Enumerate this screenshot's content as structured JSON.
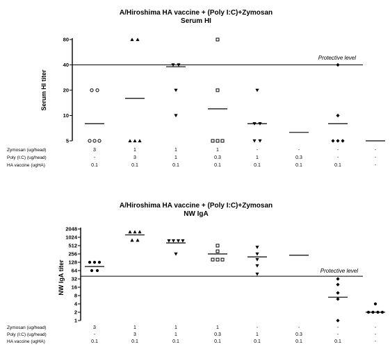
{
  "chart_data": [
    {
      "type": "scatter",
      "title": "A/Hiroshima HA vaccine + (Poly I:C)+Zymosan",
      "subtitle": "Serum HI",
      "ylabel": "Serum HI titer",
      "ylim": [
        5,
        80
      ],
      "yticks": [
        "5",
        "10",
        "20",
        "40",
        "80"
      ],
      "protective_level": {
        "label": "Protective level",
        "value": 40
      },
      "groups": [
        {
          "points": [
            20,
            20,
            5,
            5,
            5
          ],
          "marker": "circle-open",
          "mean": 8
        },
        {
          "points": [
            80,
            80,
            5,
            5,
            5
          ],
          "marker": "triangle-up",
          "mean": 16
        },
        {
          "points": [
            40,
            40,
            20,
            10
          ],
          "marker": "triangle-down",
          "mean": 38
        },
        {
          "points": [
            80,
            20,
            5,
            5,
            5
          ],
          "marker": "square-open",
          "mean": 12
        },
        {
          "points": [
            20,
            8,
            8,
            5,
            5
          ],
          "marker": "triangle-down",
          "mean": 8
        },
        {
          "points": [
            5,
            5,
            5,
            5,
            5
          ],
          "marker": "none",
          "mean": 6.3
        },
        {
          "points": [
            40,
            10,
            5,
            5,
            5
          ],
          "marker": "diamond",
          "mean": 8
        },
        {
          "points": [
            5,
            5,
            5,
            5,
            5
          ],
          "marker": "none",
          "mean": 5
        }
      ]
    },
    {
      "type": "scatter",
      "title": "A/Hiroshima HA vaccine + (Poly I:C)+Zymosan",
      "subtitle": "NW IgA",
      "ylabel": "NW IgA titer",
      "ylim": [
        1,
        2048
      ],
      "scale": "log2",
      "yticks": [
        "2048",
        "1024",
        "512",
        "256",
        "128",
        "64",
        "32",
        "16",
        "8",
        "4",
        "2",
        "1"
      ],
      "protective_level": {
        "label": "Protective level",
        "value": 40
      },
      "groups": [
        {
          "points": [
            128,
            128,
            128,
            64,
            64
          ],
          "marker": "circle",
          "mean": 90
        },
        {
          "points": [
            1600,
            1600,
            1600,
            800,
            800
          ],
          "marker": "triangle-up",
          "mean": 1250
        },
        {
          "points": [
            768,
            768,
            768,
            768,
            256
          ],
          "marker": "triangle-down",
          "mean": 640
        },
        {
          "points": [
            512,
            320,
            160,
            160,
            160
          ],
          "marker": "square-open",
          "mean": 256
        },
        {
          "points": [
            448,
            256,
            160,
            96,
            48
          ],
          "marker": "triangle-down",
          "mean": 200
        },
        {
          "points": [],
          "marker": "none",
          "mean": 230
        },
        {
          "points": [
            32,
            20,
            10,
            6,
            1
          ],
          "marker": "diamond",
          "mean": 7
        },
        {
          "points": [
            4,
            2,
            2,
            2,
            2
          ],
          "marker": "circle",
          "mean": 2
        }
      ]
    }
  ],
  "table": {
    "row_labels_top": [
      "Zymosan (ug/head)",
      "Poly (I:C) (ug/head)",
      "HA vaccine (ugHA)"
    ],
    "row_labels_bottom": [
      "Zymosan (ug/head)",
      "Poly (I:C) (ug/head)",
      "HA vaccine (ugHA)"
    ],
    "columns": [
      [
        "3",
        "-",
        "0.1"
      ],
      [
        "1",
        "3",
        "0.1"
      ],
      [
        "1",
        "1",
        "0.1"
      ],
      [
        "1",
        "0.3",
        "0.1"
      ],
      [
        "-",
        "1",
        "0.1"
      ],
      [
        "-",
        "0.3",
        "0.1"
      ],
      [
        "-",
        "-",
        "0.1"
      ],
      [
        "-",
        "-",
        "-"
      ]
    ]
  }
}
